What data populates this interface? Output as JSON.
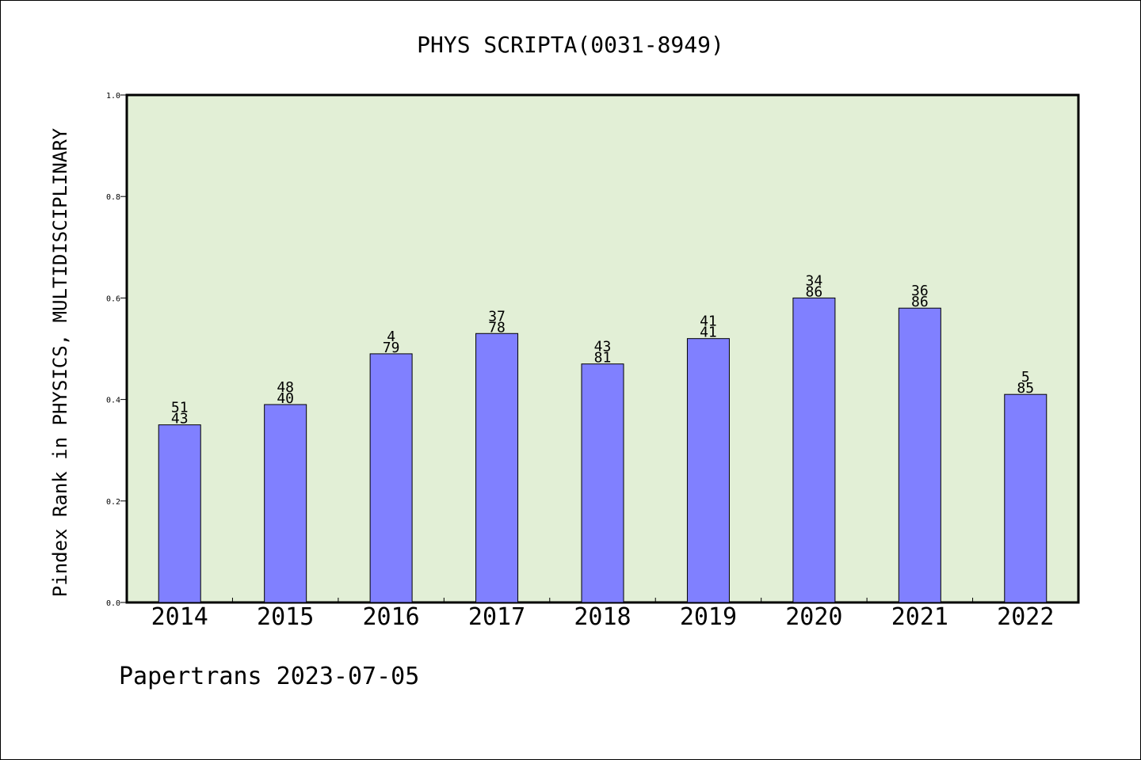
{
  "chart_data": {
    "type": "bar",
    "title": "PHYS SCRIPTA(0031-8949)",
    "xlabel": "",
    "ylabel": "Pindex Rank in PHYSICS, MULTIDISCIPLINARY",
    "ylim": [
      0,
      1.0
    ],
    "yticks": [
      "0.0",
      "0.2",
      "0.4",
      "0.6",
      "0.8",
      "1.0"
    ],
    "categories": [
      "2014",
      "2015",
      "2016",
      "2017",
      "2018",
      "2019",
      "2020",
      "2021",
      "2022"
    ],
    "values": [
      0.35,
      0.39,
      0.49,
      0.53,
      0.47,
      0.52,
      0.6,
      0.58,
      0.41
    ],
    "bar_labels": [
      [
        "51",
        "43"
      ],
      [
        "48",
        "40"
      ],
      [
        "4",
        "79"
      ],
      [
        "37",
        "78"
      ],
      [
        "43",
        "81"
      ],
      [
        "41",
        "41"
      ],
      [
        "34",
        "86"
      ],
      [
        "36",
        "86"
      ],
      [
        "5",
        "85"
      ]
    ],
    "grid": false,
    "colors": {
      "bar": "#8080ff",
      "plot_background": "#e2efd6"
    }
  },
  "footer": "Papertrans 2023-07-05"
}
